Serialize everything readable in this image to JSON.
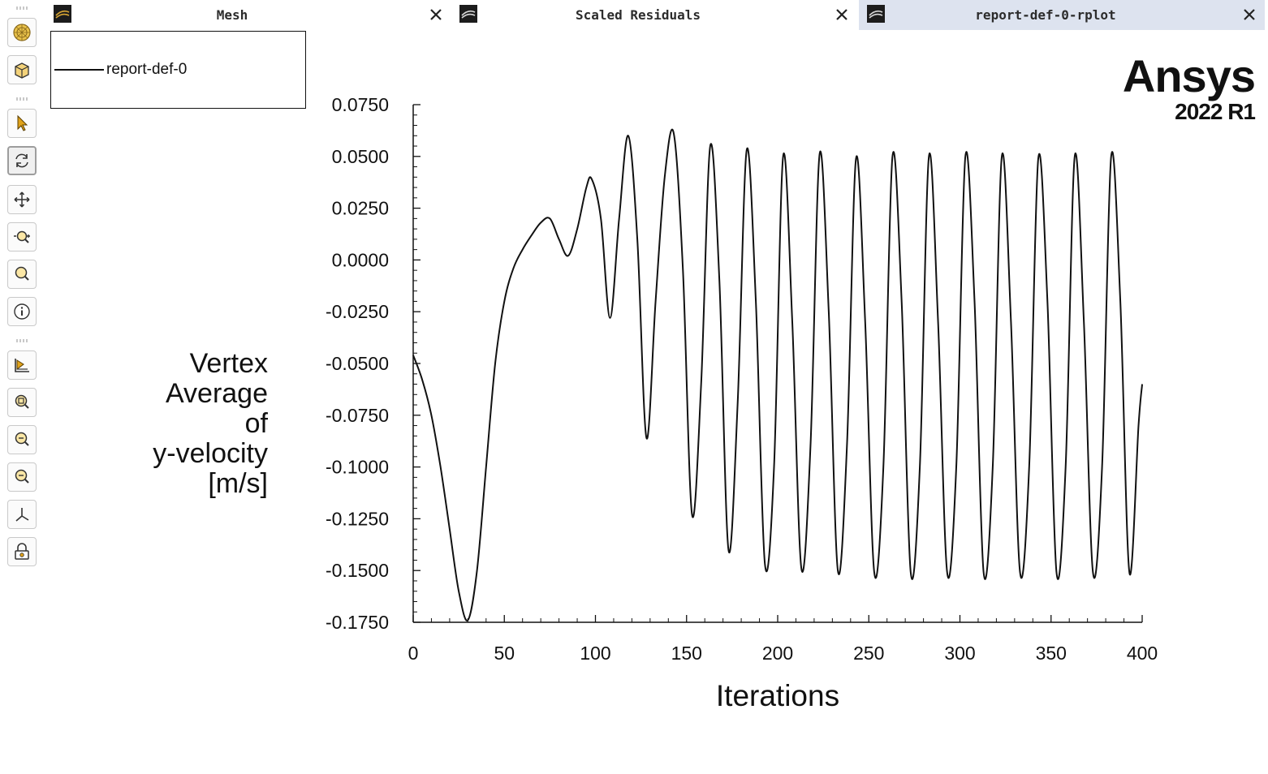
{
  "tabs": [
    {
      "title": "Mesh",
      "active": false
    },
    {
      "title": "Scaled Residuals",
      "active": false
    },
    {
      "title": "report-def-0-rplot",
      "active": true
    }
  ],
  "toolbar": {
    "icons": [
      "display-globe-icon",
      "view-cube-icon",
      "select-arrow-icon",
      "rotate-icon",
      "pan-icon",
      "zoom-interactive-icon",
      "zoom-icon",
      "probe-info-icon",
      "fit-to-window-icon",
      "zoom-to-fit-icon",
      "zoom-in-icon",
      "zoom-out-icon",
      "axes-icon",
      "lock-icon"
    ],
    "active": "rotate-icon"
  },
  "brand": {
    "name": "Ansys",
    "version": "2022 R1"
  },
  "legend": {
    "entries": [
      "report-def-0"
    ]
  },
  "chart_data": {
    "type": "line",
    "title": "",
    "xlabel": "Iterations",
    "ylabel_lines": [
      "Vertex",
      "Average",
      "of",
      "y-velocity",
      "[m/s]"
    ],
    "xlim": [
      0,
      400
    ],
    "ylim": [
      -0.175,
      0.075
    ],
    "xticks": [
      "0",
      "50",
      "100",
      "150",
      "200",
      "250",
      "300",
      "350",
      "400"
    ],
    "yticks": [
      "0.0750",
      "0.0500",
      "0.0250",
      "0.0000",
      "-0.0250",
      "-0.0500",
      "-0.0750",
      "-0.1000",
      "-0.1250",
      "-0.1500",
      "-0.1750"
    ],
    "grid": false,
    "legend_position": "top-left",
    "series": [
      {
        "name": "report-def-0",
        "color": "#111111",
        "x": [
          0,
          5,
          10,
          15,
          20,
          25,
          30,
          35,
          40,
          45,
          50,
          55,
          60,
          65,
          70,
          75,
          80,
          85,
          90,
          95,
          98,
          103,
          108,
          113,
          118,
          123,
          128,
          133,
          138,
          143,
          148,
          153,
          158,
          163,
          168,
          173,
          178,
          183,
          188,
          193,
          198,
          203,
          208,
          213,
          218,
          223,
          228,
          233,
          238,
          243,
          248,
          253,
          258,
          263,
          268,
          273,
          278,
          283,
          288,
          293,
          298,
          303,
          308,
          313,
          318,
          323,
          328,
          333,
          338,
          343,
          348,
          353,
          358,
          363,
          368,
          373,
          378,
          383,
          388,
          393,
          398,
          400
        ],
        "y": [
          -0.046,
          -0.058,
          -0.075,
          -0.1,
          -0.13,
          -0.16,
          -0.174,
          -0.15,
          -0.1,
          -0.05,
          -0.02,
          -0.004,
          0.005,
          0.012,
          0.018,
          0.02,
          0.01,
          0.002,
          0.015,
          0.035,
          0.039,
          0.02,
          -0.028,
          0.02,
          0.06,
          0.01,
          -0.086,
          -0.02,
          0.04,
          0.061,
          -0.005,
          -0.123,
          -0.06,
          0.055,
          -0.01,
          -0.14,
          -0.07,
          0.053,
          -0.02,
          -0.147,
          -0.1,
          0.05,
          -0.03,
          -0.149,
          -0.09,
          0.051,
          -0.025,
          -0.15,
          -0.09,
          0.049,
          -0.03,
          -0.151,
          -0.1,
          0.05,
          -0.02,
          -0.151,
          -0.1,
          0.05,
          -0.03,
          -0.151,
          -0.1,
          0.05,
          -0.02,
          -0.151,
          -0.1,
          0.05,
          -0.03,
          -0.151,
          -0.1,
          0.049,
          -0.02,
          -0.151,
          -0.1,
          0.05,
          -0.03,
          -0.151,
          -0.1,
          0.05,
          -0.02,
          -0.151,
          -0.08,
          -0.06
        ]
      }
    ]
  }
}
